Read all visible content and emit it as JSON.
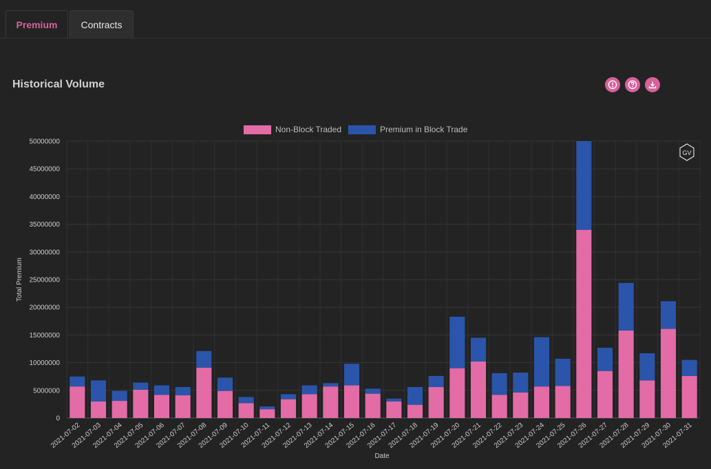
{
  "tabs": [
    {
      "label": "Premium",
      "active": true
    },
    {
      "label": "Contracts",
      "active": false
    }
  ],
  "section": {
    "title": "Historical Volume"
  },
  "toolbar": {
    "icons": [
      "alert-icon",
      "help-icon",
      "download-icon"
    ]
  },
  "chart_badge": "GV",
  "colors": {
    "accent": "#d9609a",
    "non_block": "#e36ba6",
    "block": "#2a55aa",
    "background": "#232323"
  },
  "chart_data": {
    "type": "bar",
    "stacked": true,
    "xlabel": "Date",
    "ylabel": "Total Premium",
    "ylim": [
      0,
      50000000
    ],
    "yticks": [
      0,
      5000000,
      10000000,
      15000000,
      20000000,
      25000000,
      30000000,
      35000000,
      40000000,
      45000000,
      50000000
    ],
    "legend_position": "top-center",
    "grid": true,
    "categories": [
      "2021-07-02",
      "2021-07-03",
      "2021-07-04",
      "2021-07-05",
      "2021-07-06",
      "2021-07-07",
      "2021-07-08",
      "2021-07-09",
      "2021-07-10",
      "2021-07-11",
      "2021-07-12",
      "2021-07-13",
      "2021-07-14",
      "2021-07-15",
      "2021-07-16",
      "2021-07-17",
      "2021-07-18",
      "2021-07-19",
      "2021-07-20",
      "2021-07-21",
      "2021-07-22",
      "2021-07-23",
      "2021-07-24",
      "2021-07-25",
      "2021-07-26",
      "2021-07-27",
      "2021-07-28",
      "2021-07-29",
      "2021-07-30",
      "2021-07-31"
    ],
    "series": [
      {
        "name": "Non-Block Traded",
        "color": "#e36ba6",
        "values": [
          5700000,
          3000000,
          3100000,
          5100000,
          4200000,
          4100000,
          9100000,
          4900000,
          2700000,
          1600000,
          3400000,
          4300000,
          5700000,
          5900000,
          4400000,
          3000000,
          2400000,
          5600000,
          9000000,
          10200000,
          4200000,
          4600000,
          5700000,
          5800000,
          34000000,
          8500000,
          15800000,
          6800000,
          16100000,
          7600000
        ]
      },
      {
        "name": "Premium in Block Trade",
        "color": "#2a55aa",
        "values": [
          1800000,
          3800000,
          1800000,
          1300000,
          1700000,
          1500000,
          3000000,
          2400000,
          1100000,
          500000,
          900000,
          1600000,
          600000,
          3900000,
          900000,
          500000,
          3200000,
          2000000,
          9300000,
          4300000,
          3900000,
          3600000,
          8900000,
          4900000,
          16000000,
          4200000,
          8600000,
          4900000,
          5000000,
          2900000
        ]
      }
    ]
  }
}
